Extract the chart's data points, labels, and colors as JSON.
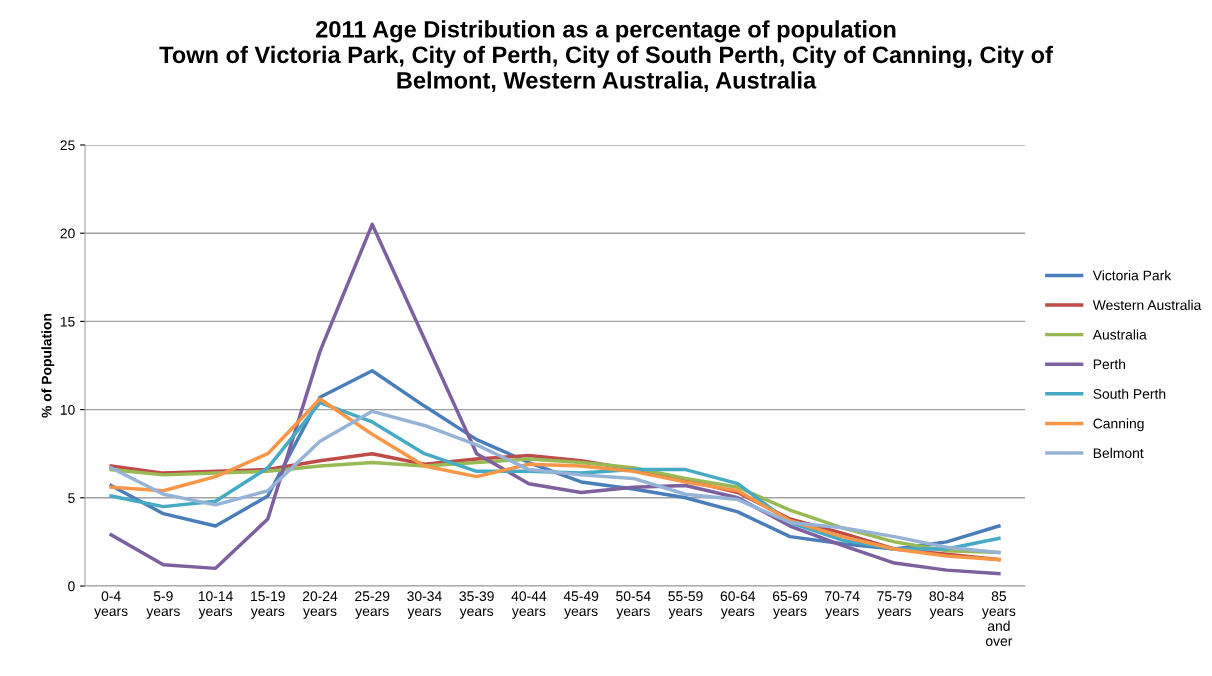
{
  "chart_data": {
    "type": "line",
    "title": "2011 Age Distribution as a percentage of population\nTown of Victoria Park, City of Perth, City of South Perth, City of Canning, City of\nBelmont, Western Australia, Australia",
    "ylabel": "% of Population",
    "categories": [
      "0-4\nyears",
      "5-9\nyears",
      "10-14\nyears",
      "15-19\nyears",
      "20-24\nyears",
      "25-29\nyears",
      "30-34\nyears",
      "35-39\nyears",
      "40-44\nyears",
      "45-49\nyears",
      "50-54\nyears",
      "55-59\nyears",
      "60-64\nyears",
      "65-69\nyears",
      "70-74\nyears",
      "75-79\nyears",
      "80-84\nyears",
      "85\nyears\nand\nover"
    ],
    "series": [
      {
        "name": "Victoria Park",
        "color": "#4a7ebb",
        "values": [
          5.7,
          4.1,
          3.4,
          5.1,
          10.7,
          12.2,
          10.2,
          8.3,
          7.0,
          5.9,
          5.5,
          5.0,
          4.2,
          2.8,
          2.4,
          2.1,
          2.5,
          3.4
        ]
      },
      {
        "name": "Western Australia",
        "color": "#be4b48",
        "values": [
          6.8,
          6.4,
          6.5,
          6.6,
          7.1,
          7.5,
          6.9,
          7.2,
          7.4,
          7.1,
          6.6,
          6.0,
          5.3,
          3.8,
          3.0,
          2.1,
          1.8,
          1.5
        ]
      },
      {
        "name": "Australia",
        "color": "#98b954",
        "values": [
          6.6,
          6.3,
          6.4,
          6.5,
          6.8,
          7.0,
          6.8,
          7.0,
          7.2,
          7.0,
          6.7,
          6.1,
          5.6,
          4.3,
          3.3,
          2.5,
          2.0,
          1.9
        ]
      },
      {
        "name": "Perth",
        "color": "#7d60a0",
        "values": [
          2.9,
          1.2,
          1.0,
          3.8,
          13.3,
          20.5,
          14.0,
          7.5,
          5.8,
          5.3,
          5.6,
          5.7,
          5.0,
          3.4,
          2.3,
          1.3,
          0.9,
          0.7
        ]
      },
      {
        "name": "South Perth",
        "color": "#46aac5",
        "values": [
          5.1,
          4.5,
          4.8,
          6.7,
          10.4,
          9.3,
          7.5,
          6.5,
          6.5,
          6.4,
          6.6,
          6.6,
          5.8,
          3.6,
          2.6,
          2.1,
          2.1,
          2.7
        ]
      },
      {
        "name": "Canning",
        "color": "#f79646",
        "values": [
          5.6,
          5.4,
          6.2,
          7.5,
          10.6,
          8.6,
          6.8,
          6.2,
          6.9,
          6.8,
          6.5,
          5.9,
          5.4,
          3.7,
          2.8,
          2.1,
          1.7,
          1.5
        ]
      },
      {
        "name": "Belmont",
        "color": "#95b3d7",
        "values": [
          6.7,
          5.2,
          4.6,
          5.4,
          8.2,
          9.9,
          9.1,
          8.0,
          6.6,
          6.3,
          6.1,
          5.2,
          4.9,
          3.6,
          3.3,
          2.8,
          2.2,
          1.9
        ]
      }
    ],
    "ylim": [
      0,
      25
    ],
    "yticks": [
      0,
      5,
      10,
      15,
      20,
      25
    ],
    "grid": "y",
    "legend": "right",
    "marker": "none",
    "line_style": "solid"
  }
}
